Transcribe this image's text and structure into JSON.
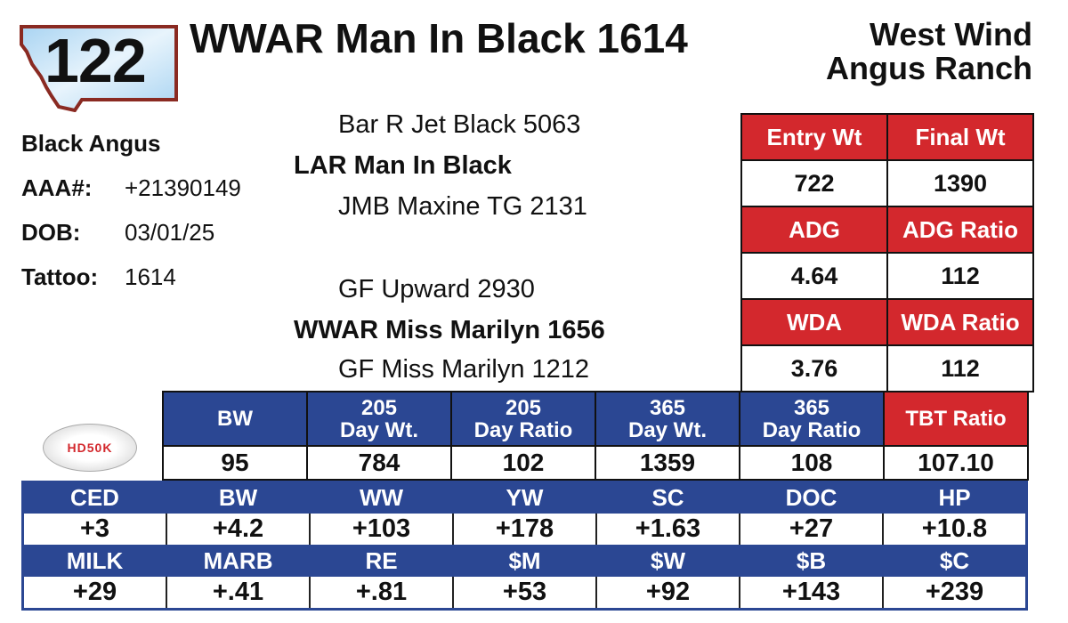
{
  "lot": {
    "number": "122"
  },
  "animal": {
    "name": "WWAR Man In Black 1614"
  },
  "ranch": {
    "line1": "West Wind",
    "line2": "Angus Ranch"
  },
  "info": {
    "breed": "Black Angus",
    "aaa_label": "AAA#:",
    "aaa_value": "+21390149",
    "dob_label": "DOB:",
    "dob_value": "03/01/25",
    "tattoo_label": "Tattoo:",
    "tattoo_value": "1614"
  },
  "pedigree": {
    "sire_sire": "Bar R Jet Black 5063",
    "sire": "LAR Man In Black",
    "sire_dam": "JMB Maxine TG 2131",
    "dam_sire": "GF Upward 2930",
    "dam": "WWAR Miss Marilyn 1656",
    "dam_dam": "GF Miss Marilyn 1212"
  },
  "test": {
    "entry_wt_label": "Entry Wt",
    "final_wt_label": "Final Wt",
    "entry_wt": "722",
    "final_wt": "1390",
    "adg_label": "ADG",
    "adg_ratio_label": "ADG Ratio",
    "adg": "4.64",
    "adg_ratio": "112",
    "wda_label": "WDA",
    "wda_ratio_label": "WDA Ratio",
    "wda": "3.76",
    "wda_ratio": "112"
  },
  "logo": {
    "text": "HD50K"
  },
  "performance": {
    "headers": [
      [
        "BW",
        ""
      ],
      [
        "205",
        "Day Wt."
      ],
      [
        "205",
        "Day Ratio"
      ],
      [
        "365",
        "Day Wt."
      ],
      [
        "365",
        "Day Ratio"
      ],
      [
        "TBT Ratio",
        ""
      ]
    ],
    "values": [
      "95",
      "784",
      "102",
      "1359",
      "108",
      "107.10"
    ]
  },
  "epds": {
    "row1_labels": [
      "CED",
      "BW",
      "WW",
      "YW",
      "SC",
      "DOC",
      "HP"
    ],
    "row1_values": [
      "+3",
      "+4.2",
      "+103",
      "+178",
      "+1.63",
      "+27",
      "+10.8"
    ],
    "row2_labels": [
      "MILK",
      "MARB",
      "RE",
      "$M",
      "$W",
      "$B",
      "$C"
    ],
    "row2_values": [
      "+29",
      "+.41",
      "+.81",
      "+53",
      "+92",
      "+143",
      "+239"
    ]
  },
  "colors": {
    "red": "#d3282d",
    "blue": "#2b4793",
    "state_fill": "#cfe6f7",
    "state_border": "#8a2a22"
  }
}
